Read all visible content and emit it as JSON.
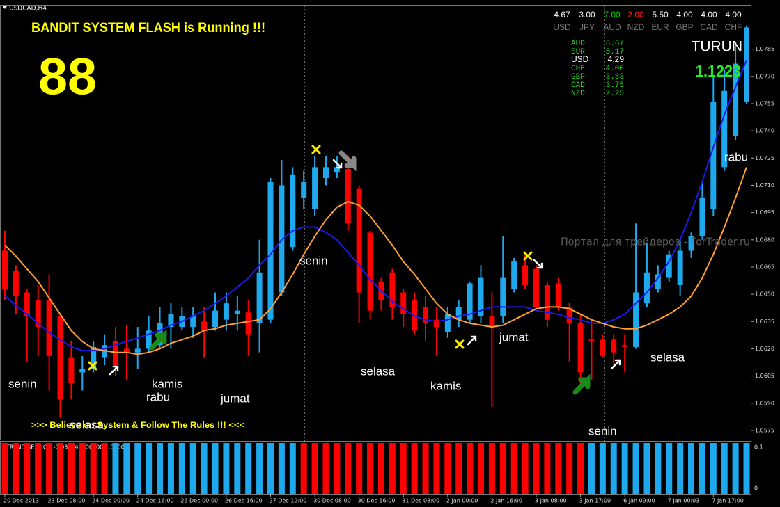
{
  "chart_data": {
    "type": "candlestick",
    "title": "USDCAD,H4",
    "categories": [
      "20 Dec 2013",
      null,
      null,
      null,
      "23 Dec 08:00",
      null,
      null,
      null,
      "24 Dec 00:00",
      null,
      null,
      null,
      "24 Dec 16:00",
      null,
      null,
      null,
      "26 Dec 00:00",
      null,
      null,
      null,
      "26 Dec 16:00",
      null,
      null,
      null,
      "27 Dec 12:00",
      null,
      null,
      null,
      "30 Dec 08:00",
      null,
      null,
      null,
      "30 Dec 16:00",
      null,
      null,
      null,
      "31 Dec 08:00",
      null,
      null,
      null,
      "2 Jan 00:00",
      null,
      null,
      null,
      "2 Jan 16:00",
      null,
      null,
      null,
      "3 Jan 08:00",
      null,
      null,
      null,
      "3 Jan 17:00",
      null,
      null,
      null,
      "6 Jan 09:00",
      null,
      null,
      null,
      "7 Jan 00:03",
      null,
      null,
      null,
      "7 Jan 17:00",
      null,
      null,
      null
    ],
    "open": [
      1.0674,
      1.0663,
      1.0651,
      1.0647,
      1.0647,
      1.0638,
      1.0615,
      1.0607,
      1.0609,
      1.0615,
      1.0624,
      1.062,
      1.0618,
      1.062,
      1.0622,
      1.0632,
      1.0632,
      1.0632,
      1.0635,
      1.0632,
      1.0636,
      1.0639,
      1.064,
      1.0634,
      1.0636,
      1.0651,
      1.0676,
      1.0703,
      1.0697,
      1.0714,
      1.0717,
      1.0719,
      1.0708,
      1.0684,
      1.0657,
      1.0662,
      1.0651,
      1.0647,
      1.0643,
      1.0636,
      1.0629,
      1.0636,
      1.0636,
      1.0638,
      1.0638,
      1.0638,
      1.0653,
      1.0666,
      1.0664,
      1.0655,
      1.0656,
      1.0643,
      1.0634,
      1.0625,
      1.0625,
      1.0625,
      1.0622,
      1.0621,
      1.0645,
      1.0653,
      1.0659,
      1.0655,
      1.0674,
      1.0682,
      1.0697,
      1.072,
      1.0737,
      1.0756
    ],
    "high": [
      1.0685,
      1.0666,
      1.0653,
      1.0655,
      1.0661,
      1.0639,
      1.0624,
      1.0616,
      1.0624,
      1.0628,
      1.0632,
      1.0633,
      1.0632,
      1.0638,
      1.0643,
      1.0645,
      1.0643,
      1.0643,
      1.0643,
      1.0651,
      1.0651,
      1.0649,
      1.0647,
      1.068,
      1.0714,
      1.0724,
      1.072,
      1.0718,
      1.0726,
      1.0726,
      1.0726,
      1.0726,
      1.071,
      1.0685,
      1.0659,
      1.0664,
      1.0653,
      1.0651,
      1.0649,
      1.0643,
      1.0643,
      1.0647,
      1.0657,
      1.0666,
      1.0651,
      1.0682,
      1.067,
      1.0672,
      1.0666,
      1.0657,
      1.0659,
      1.0645,
      1.0639,
      1.0636,
      1.0628,
      1.0628,
      1.0628,
      1.0689,
      1.0678,
      1.0666,
      1.0674,
      1.068,
      1.0684,
      1.0712,
      1.077,
      1.0774,
      1.0789,
      1.0798
    ],
    "low": [
      1.0647,
      1.0639,
      1.0613,
      1.0616,
      1.0597,
      1.0582,
      1.0592,
      1.0597,
      1.0607,
      1.0611,
      1.0605,
      1.0603,
      1.0609,
      1.0618,
      1.062,
      1.062,
      1.063,
      1.0626,
      1.0615,
      1.063,
      1.063,
      1.063,
      1.0616,
      1.0618,
      1.0634,
      1.0649,
      1.0674,
      1.0697,
      1.0693,
      1.071,
      1.0714,
      1.0685,
      1.0634,
      1.0636,
      1.0641,
      1.0636,
      1.0632,
      1.0628,
      1.0624,
      1.0616,
      1.0626,
      1.0632,
      1.0634,
      1.0634,
      1.0588,
      1.0634,
      1.0651,
      1.0653,
      1.0641,
      1.0632,
      1.0641,
      1.0613,
      1.0601,
      1.0603,
      1.0615,
      1.0611,
      1.0607,
      1.062,
      1.0643,
      1.0651,
      1.0657,
      1.0649,
      1.067,
      1.068,
      1.0693,
      1.0718,
      1.0735,
      1.0755
    ],
    "close": [
      1.0653,
      1.0649,
      1.0638,
      1.0632,
      1.0616,
      1.0592,
      1.0601,
      1.0609,
      1.0621,
      1.0622,
      1.0611,
      1.0618,
      1.062,
      1.063,
      1.0634,
      1.0639,
      1.0638,
      1.0638,
      1.063,
      1.0641,
      1.0645,
      1.0641,
      1.0628,
      1.0662,
      1.0712,
      1.071,
      1.0716,
      1.0712,
      1.072,
      1.072,
      1.072,
      1.0689,
      1.0651,
      1.0641,
      1.0647,
      1.0643,
      1.0639,
      1.063,
      1.0634,
      1.0632,
      1.0639,
      1.0643,
      1.0656,
      1.0659,
      1.0632,
      1.0659,
      1.0668,
      1.0655,
      1.0643,
      1.0636,
      1.0643,
      1.0634,
      1.0607,
      1.0624,
      1.0616,
      1.0618,
      1.0621,
      1.0651,
      1.0662,
      1.0661,
      1.0672,
      1.0674,
      1.0682,
      1.0703,
      1.0756,
      1.0762,
      1.0777,
      1.0797
    ],
    "up_color": "#1ea8ee",
    "down_color": "#ff0000",
    "series": [
      {
        "color": "#1a1aee",
        "values": [
          1.0649,
          1.0644,
          1.0639,
          1.0634,
          1.0629,
          1.0625,
          1.0621,
          1.0619,
          1.0619,
          1.062,
          1.0622,
          1.0624,
          1.0626,
          1.0628,
          1.063,
          1.0633,
          1.0635,
          1.0638,
          1.0641,
          1.0645,
          1.0649,
          1.0654,
          1.0659,
          1.0666,
          1.0672,
          1.068,
          1.0685,
          1.0687,
          1.0687,
          1.0684,
          1.068,
          1.0673,
          1.0666,
          1.0658,
          1.0652,
          1.0646,
          1.0642,
          1.0638,
          1.0636,
          1.0635,
          1.0636,
          1.0638,
          1.0639,
          1.0641,
          1.0643,
          1.0643,
          1.0643,
          1.0643,
          1.0641,
          1.064,
          1.0639,
          1.0637,
          1.0636,
          1.0634,
          1.0634,
          1.0636,
          1.0639,
          1.0645,
          1.0651,
          1.0659,
          1.0668,
          1.068,
          1.0695,
          1.0712,
          1.0731,
          1.0749,
          1.0764,
          1.0779
        ]
      },
      {
        "color": "#ffa030",
        "values": [
          1.0677,
          1.0671,
          1.0664,
          1.0657,
          1.0648,
          1.0639,
          1.063,
          1.0624,
          1.062,
          1.0619,
          1.0618,
          1.0618,
          1.0617,
          1.0618,
          1.062,
          1.0623,
          1.0625,
          1.0627,
          1.063,
          1.0631,
          1.0633,
          1.0634,
          1.0635,
          1.0636,
          1.0642,
          1.0651,
          1.0661,
          1.0672,
          1.0682,
          1.0691,
          1.0698,
          1.0701,
          1.0699,
          1.0693,
          1.0685,
          1.0677,
          1.0668,
          1.0661,
          1.0653,
          1.0645,
          1.0639,
          1.0636,
          1.0634,
          1.0633,
          1.0632,
          1.0633,
          1.0636,
          1.0639,
          1.0642,
          1.0643,
          1.0643,
          1.0642,
          1.0639,
          1.0636,
          1.0634,
          1.0632,
          1.0631,
          1.0631,
          1.0633,
          1.0636,
          1.0639,
          1.0643,
          1.0649,
          1.0659,
          1.0672,
          1.0687,
          1.0703,
          1.072
        ]
      }
    ],
    "ylim": [
      1.057,
      1.0809
    ],
    "yticks": [
      1.0575,
      {
        "value": 1.059,
        "label": "1.0590"
      },
      1.0605,
      {
        "value": 1.062,
        "label": "1.0620"
      },
      1.0635,
      {
        "value": 1.065,
        "label": "1.0650"
      },
      1.0665,
      {
        "value": 1.068,
        "label": "1.0680"
      },
      1.0695,
      {
        "value": 1.071,
        "label": "1.0710"
      },
      1.0725,
      {
        "value": 1.074,
        "label": "1.0740"
      },
      1.0755,
      {
        "value": 1.077,
        "label": "1.0770"
      },
      1.0785
    ],
    "indicator": {
      "type": "bar",
      "label": "TREND SESSION -0.03274 0.00000 1.00000",
      "ylim": [
        0,
        1
      ],
      "tick_labels": [
        "0.1",
        "0"
      ],
      "values": [
        1,
        1,
        1,
        1,
        1,
        1,
        1,
        1,
        1,
        1,
        1,
        1,
        1,
        1,
        1,
        1,
        1,
        1,
        1,
        1,
        1,
        1,
        1,
        1,
        1,
        1,
        1,
        1,
        1,
        1,
        1,
        1,
        1,
        1,
        1,
        1,
        1,
        1,
        1,
        1,
        1,
        1,
        1,
        1,
        1,
        1,
        1,
        1,
        1,
        1,
        1,
        1,
        1,
        1,
        1,
        1,
        1,
        1,
        1,
        1,
        1,
        1,
        1,
        1,
        1,
        1,
        1,
        1
      ],
      "colors": [
        "#ff0000",
        "#ff0000",
        "#ff0000",
        "#ff0000",
        "#ff0000",
        "#ff0000",
        "#ff0000",
        "#ff0000",
        "#ff0000",
        "#ff0000",
        "#1ea8ee",
        "#1ea8ee",
        "#1ea8ee",
        "#1ea8ee",
        "#1ea8ee",
        "#1ea8ee",
        "#1ea8ee",
        "#1ea8ee",
        "#1ea8ee",
        "#1ea8ee",
        "#1ea8ee",
        "#1ea8ee",
        "#1ea8ee",
        "#1ea8ee",
        "#1ea8ee",
        "#1ea8ee",
        "#1ea8ee",
        "#ff0000",
        "#ff0000",
        "#ff0000",
        "#ff0000",
        "#ff0000",
        "#ff0000",
        "#ff0000",
        "#ff0000",
        "#ff0000",
        "#ff0000",
        "#ff0000",
        "#ff0000",
        "#ff0000",
        "#ff0000",
        "#ff0000",
        "#ff0000",
        "#ff0000",
        "#ff0000",
        "#ff0000",
        "#ff0000",
        "#ff0000",
        "#ff0000",
        "#ff0000",
        "#ff0000",
        "#ff0000",
        "#ff0000",
        "#1ea8ee",
        "#1ea8ee",
        "#1ea8ee",
        "#1ea8ee",
        "#1ea8ee",
        "#1ea8ee",
        "#1ea8ee",
        "#1ea8ee",
        "#1ea8ee",
        "#1ea8ee",
        "#1ea8ee",
        "#1ea8ee",
        "#1ea8ee",
        "#1ea8ee",
        "#1ea8ee"
      ]
    }
  },
  "header": {
    "title": "BANDIT SYSTEM FLASH is Running !!!",
    "counter": "88",
    "motto": ">>> Believe on System & Follow The Rules !!! <<<",
    "watermark": "Портал для трейдеров - ForTrader.ru"
  },
  "strength": {
    "values": [
      "4.67",
      "3.00",
      "7.00",
      "2.00",
      "5.50",
      "4.00",
      "4.00",
      "4.00"
    ],
    "names": [
      "USD",
      "JPY",
      "AUD",
      "NZD",
      "EUR",
      "GBP",
      "CAD",
      "CHF"
    ],
    "ranking": [
      [
        "AUD",
        "6.67"
      ],
      [
        "EUR",
        "5.17"
      ],
      [
        "USD",
        "4.29"
      ],
      [
        "CHF",
        "4.00"
      ],
      [
        "GBP",
        "3.83"
      ],
      [
        "CAD",
        "3.75"
      ],
      [
        "NZD",
        "2.25"
      ]
    ]
  },
  "signal": {
    "direction": "TURUN",
    "price": "1.1223"
  },
  "day_labels": [
    "senin",
    "selasa",
    "rabu",
    "kamis",
    "jumat",
    "senin",
    "selasa",
    "kamis",
    "jumat",
    "senin",
    "selasa",
    "rabu"
  ]
}
